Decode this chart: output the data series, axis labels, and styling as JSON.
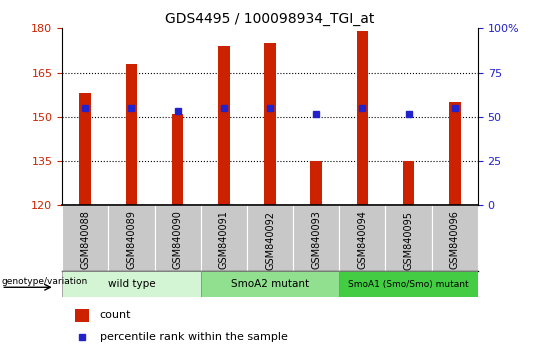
{
  "title": "GDS4495 / 100098934_TGI_at",
  "samples": [
    "GSM840088",
    "GSM840089",
    "GSM840090",
    "GSM840091",
    "GSM840092",
    "GSM840093",
    "GSM840094",
    "GSM840095",
    "GSM840096"
  ],
  "counts": [
    158,
    168,
    151,
    174,
    175,
    135,
    179,
    135,
    155
  ],
  "percentile_ranks": [
    153,
    153,
    152,
    153,
    153,
    151,
    153,
    151,
    153
  ],
  "ylim_left": [
    120,
    180
  ],
  "ylim_right": [
    0,
    100
  ],
  "yticks_left": [
    120,
    135,
    150,
    165,
    180
  ],
  "yticks_right": [
    0,
    25,
    50,
    75,
    100
  ],
  "ytick_labels_right": [
    "0",
    "25",
    "50",
    "75",
    "100%"
  ],
  "groups": [
    {
      "label": "wild type",
      "color": "#d4f5d4"
    },
    {
      "label": "SmoA2 mutant",
      "color": "#90e090"
    },
    {
      "label": "SmoA1 (Smo/Smo) mutant",
      "color": "#44cc44"
    }
  ],
  "group_starts": [
    0,
    3,
    6
  ],
  "group_ends": [
    3,
    6,
    9
  ],
  "bar_color": "#cc2200",
  "dot_color": "#2222cc",
  "bg_color": "#ffffff",
  "tick_area_color": "#c8c8c8",
  "bar_width": 0.25,
  "bar_base": 120,
  "legend_count_label": "count",
  "legend_pct_label": "percentile rank within the sample"
}
